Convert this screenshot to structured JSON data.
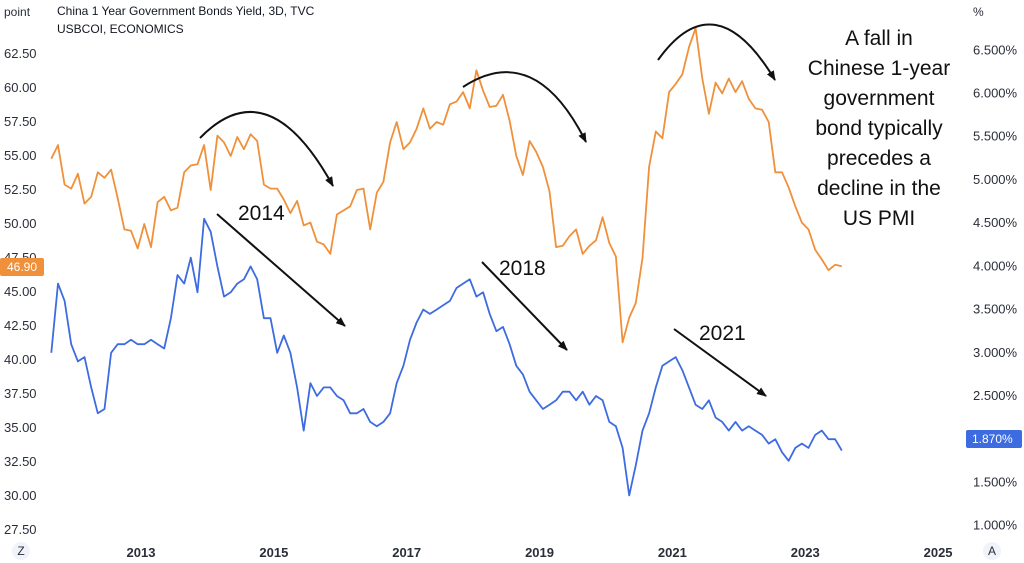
{
  "header": {
    "title": "China 1 Year Government Bonds Yield, 3D, TVC",
    "subtitle": "USBCOI, ECONOMICS",
    "left_unit": "point",
    "right_unit": "%"
  },
  "controls": {
    "zoom_label": "Z",
    "auto_label": "A"
  },
  "note": [
    "A fall in",
    "Chinese 1-year",
    "government",
    "bond typically",
    "precedes a",
    "decline in the",
    "US PMI"
  ],
  "annotations": [
    "2014",
    "2018",
    "2021"
  ],
  "colors": {
    "pmi": "#f0903a",
    "yield": "#3d6be0",
    "arrow": "#111111"
  },
  "chart_data": {
    "type": "line",
    "x_ticks": [
      "2013",
      "2015",
      "2017",
      "2019",
      "2021",
      "2023",
      "2025"
    ],
    "x_tick_values": [
      2013,
      2015,
      2017,
      2019,
      2021,
      2023,
      2025
    ],
    "xlim": [
      2011.6,
      2025.3
    ],
    "left_axis": {
      "ticks": [
        "27.50",
        "30.00",
        "32.50",
        "35.00",
        "37.50",
        "40.00",
        "42.50",
        "45.00",
        "47.50",
        "50.00",
        "52.50",
        "55.00",
        "57.50",
        "60.00",
        "62.50"
      ],
      "ylim": [
        27.5,
        65.0
      ]
    },
    "right_axis": {
      "ticks": [
        "1.000%",
        "1.500%",
        "2.000%",
        "2.500%",
        "3.000%",
        "3.500%",
        "4.000%",
        "4.500%",
        "5.000%",
        "5.500%",
        "6.000%",
        "6.500%"
      ],
      "ylim": [
        0.95,
        6.85
      ]
    },
    "series": [
      {
        "name": "USBCOI, ECONOMICS",
        "axis": "left",
        "last_value_label": "46.90",
        "x": [
          2011.65,
          2011.75,
          2011.85,
          2011.95,
          2012.05,
          2012.15,
          2012.25,
          2012.35,
          2012.45,
          2012.55,
          2012.65,
          2012.75,
          2012.85,
          2012.95,
          2013.05,
          2013.15,
          2013.25,
          2013.35,
          2013.45,
          2013.55,
          2013.65,
          2013.75,
          2013.85,
          2013.95,
          2014.05,
          2014.15,
          2014.25,
          2014.35,
          2014.45,
          2014.55,
          2014.65,
          2014.75,
          2014.85,
          2014.95,
          2015.05,
          2015.15,
          2015.25,
          2015.35,
          2015.45,
          2015.55,
          2015.65,
          2015.75,
          2015.85,
          2015.95,
          2016.05,
          2016.15,
          2016.25,
          2016.35,
          2016.45,
          2016.55,
          2016.65,
          2016.75,
          2016.85,
          2016.95,
          2017.05,
          2017.15,
          2017.25,
          2017.35,
          2017.45,
          2017.55,
          2017.65,
          2017.75,
          2017.85,
          2017.95,
          2018.05,
          2018.15,
          2018.25,
          2018.35,
          2018.45,
          2018.55,
          2018.65,
          2018.75,
          2018.85,
          2018.95,
          2019.05,
          2019.15,
          2019.25,
          2019.35,
          2019.45,
          2019.55,
          2019.65,
          2019.75,
          2019.85,
          2019.95,
          2020.05,
          2020.15,
          2020.25,
          2020.35,
          2020.45,
          2020.55,
          2020.65,
          2020.75,
          2020.85,
          2020.95,
          2021.05,
          2021.15,
          2021.25,
          2021.35,
          2021.45,
          2021.55,
          2021.65,
          2021.75,
          2021.85,
          2021.95,
          2022.05,
          2022.15,
          2022.25,
          2022.35,
          2022.45,
          2022.55,
          2022.65,
          2022.75,
          2022.85,
          2022.95,
          2023.05,
          2023.15,
          2023.25,
          2023.35,
          2023.45,
          2023.55
        ],
        "values": [
          54.8,
          55.8,
          52.9,
          52.6,
          53.7,
          51.5,
          52.0,
          53.8,
          53.4,
          54.0,
          51.9,
          49.6,
          49.5,
          48.2,
          50.0,
          48.3,
          51.6,
          52.0,
          51.0,
          51.2,
          53.8,
          54.3,
          54.4,
          55.8,
          52.5,
          56.5,
          56.0,
          55.0,
          56.4,
          55.5,
          56.6,
          56.1,
          52.9,
          52.6,
          52.6,
          51.8,
          50.8,
          51.7,
          49.9,
          50.1,
          48.7,
          48.5,
          47.8,
          50.7,
          51.0,
          51.3,
          52.5,
          52.6,
          49.6,
          52.3,
          53.1,
          56.0,
          57.5,
          55.5,
          56.0,
          57.0,
          58.5,
          57.0,
          57.5,
          57.3,
          58.8,
          59.0,
          59.7,
          58.5,
          61.3,
          59.8,
          58.6,
          58.7,
          59.5,
          57.6,
          55.0,
          53.6,
          56.1,
          55.3,
          54.2,
          52.4,
          48.3,
          48.4,
          49.1,
          49.6,
          47.8,
          48.4,
          48.8,
          50.5,
          48.6,
          47.6,
          41.3,
          43.1,
          44.2,
          47.5,
          54.2,
          56.8,
          56.3,
          59.7,
          60.3,
          61.0,
          63.0,
          64.4,
          60.7,
          58.1,
          60.4,
          59.6,
          60.7,
          59.7,
          60.5,
          59.2,
          58.5,
          58.4,
          57.5,
          53.8,
          53.8,
          52.7,
          51.3,
          50.1,
          49.6,
          48.1,
          47.4,
          46.6,
          47.0,
          46.9
        ]
      },
      {
        "name": "China 1 Year Government Bonds Yield",
        "axis": "right",
        "last_value_label": "1.870%",
        "x": [
          2011.65,
          2011.75,
          2011.85,
          2011.95,
          2012.05,
          2012.15,
          2012.25,
          2012.35,
          2012.45,
          2012.55,
          2012.65,
          2012.75,
          2012.85,
          2012.95,
          2013.05,
          2013.15,
          2013.25,
          2013.35,
          2013.45,
          2013.55,
          2013.65,
          2013.75,
          2013.85,
          2013.95,
          2014.05,
          2014.15,
          2014.25,
          2014.35,
          2014.45,
          2014.55,
          2014.65,
          2014.75,
          2014.85,
          2014.95,
          2015.05,
          2015.15,
          2015.25,
          2015.35,
          2015.45,
          2015.55,
          2015.65,
          2015.75,
          2015.85,
          2015.95,
          2016.05,
          2016.15,
          2016.25,
          2016.35,
          2016.45,
          2016.55,
          2016.65,
          2016.75,
          2016.85,
          2016.95,
          2017.05,
          2017.15,
          2017.25,
          2017.35,
          2017.45,
          2017.55,
          2017.65,
          2017.75,
          2017.85,
          2017.95,
          2018.05,
          2018.15,
          2018.25,
          2018.35,
          2018.45,
          2018.55,
          2018.65,
          2018.75,
          2018.85,
          2018.95,
          2019.05,
          2019.15,
          2019.25,
          2019.35,
          2019.45,
          2019.55,
          2019.65,
          2019.75,
          2019.85,
          2019.95,
          2020.05,
          2020.15,
          2020.25,
          2020.35,
          2020.45,
          2020.55,
          2020.65,
          2020.75,
          2020.85,
          2020.95,
          2021.05,
          2021.15,
          2021.25,
          2021.35,
          2021.45,
          2021.55,
          2021.65,
          2021.75,
          2021.85,
          2021.95,
          2022.05,
          2022.15,
          2022.25,
          2022.35,
          2022.45,
          2022.55,
          2022.65,
          2022.75,
          2022.85,
          2022.95,
          2023.05,
          2023.15,
          2023.25,
          2023.35,
          2023.45,
          2023.55
        ],
        "values": [
          3.0,
          3.8,
          3.6,
          3.1,
          2.9,
          2.95,
          2.6,
          2.3,
          2.35,
          3.0,
          3.1,
          3.1,
          3.15,
          3.1,
          3.1,
          3.15,
          3.1,
          3.05,
          3.4,
          3.9,
          3.8,
          4.1,
          3.7,
          4.55,
          4.4,
          4.0,
          3.65,
          3.7,
          3.8,
          3.85,
          4.0,
          3.85,
          3.4,
          3.4,
          3.0,
          3.2,
          3.0,
          2.6,
          2.1,
          2.65,
          2.5,
          2.6,
          2.6,
          2.5,
          2.45,
          2.3,
          2.3,
          2.35,
          2.2,
          2.15,
          2.2,
          2.3,
          2.65,
          2.85,
          3.15,
          3.35,
          3.5,
          3.45,
          3.5,
          3.55,
          3.6,
          3.75,
          3.8,
          3.85,
          3.65,
          3.7,
          3.45,
          3.25,
          3.3,
          3.1,
          2.85,
          2.75,
          2.55,
          2.45,
          2.35,
          2.4,
          2.45,
          2.55,
          2.55,
          2.45,
          2.55,
          2.4,
          2.5,
          2.45,
          2.2,
          2.15,
          1.9,
          1.35,
          1.7,
          2.1,
          2.3,
          2.6,
          2.85,
          2.9,
          2.95,
          2.8,
          2.6,
          2.4,
          2.35,
          2.45,
          2.25,
          2.2,
          2.1,
          2.2,
          2.1,
          2.15,
          2.1,
          2.05,
          1.95,
          2.0,
          1.85,
          1.75,
          1.9,
          1.95,
          1.9,
          2.05,
          2.1,
          2.0,
          2.0,
          1.87
        ]
      }
    ]
  }
}
